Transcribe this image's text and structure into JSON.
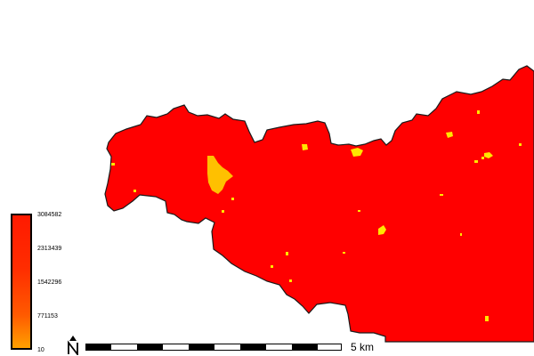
{
  "legend": {
    "ticks": [
      "3084582",
      "2313439",
      "1542296",
      "771153",
      "10"
    ]
  },
  "scale": {
    "label": "5 km"
  },
  "colors": {
    "region_fill": "#ff0000",
    "region_outline": "#1a1a1a",
    "patch_yellow": "#ffe600",
    "patch_orange": "#ffc000"
  },
  "icons": {
    "north": "north-arrow-icon"
  }
}
